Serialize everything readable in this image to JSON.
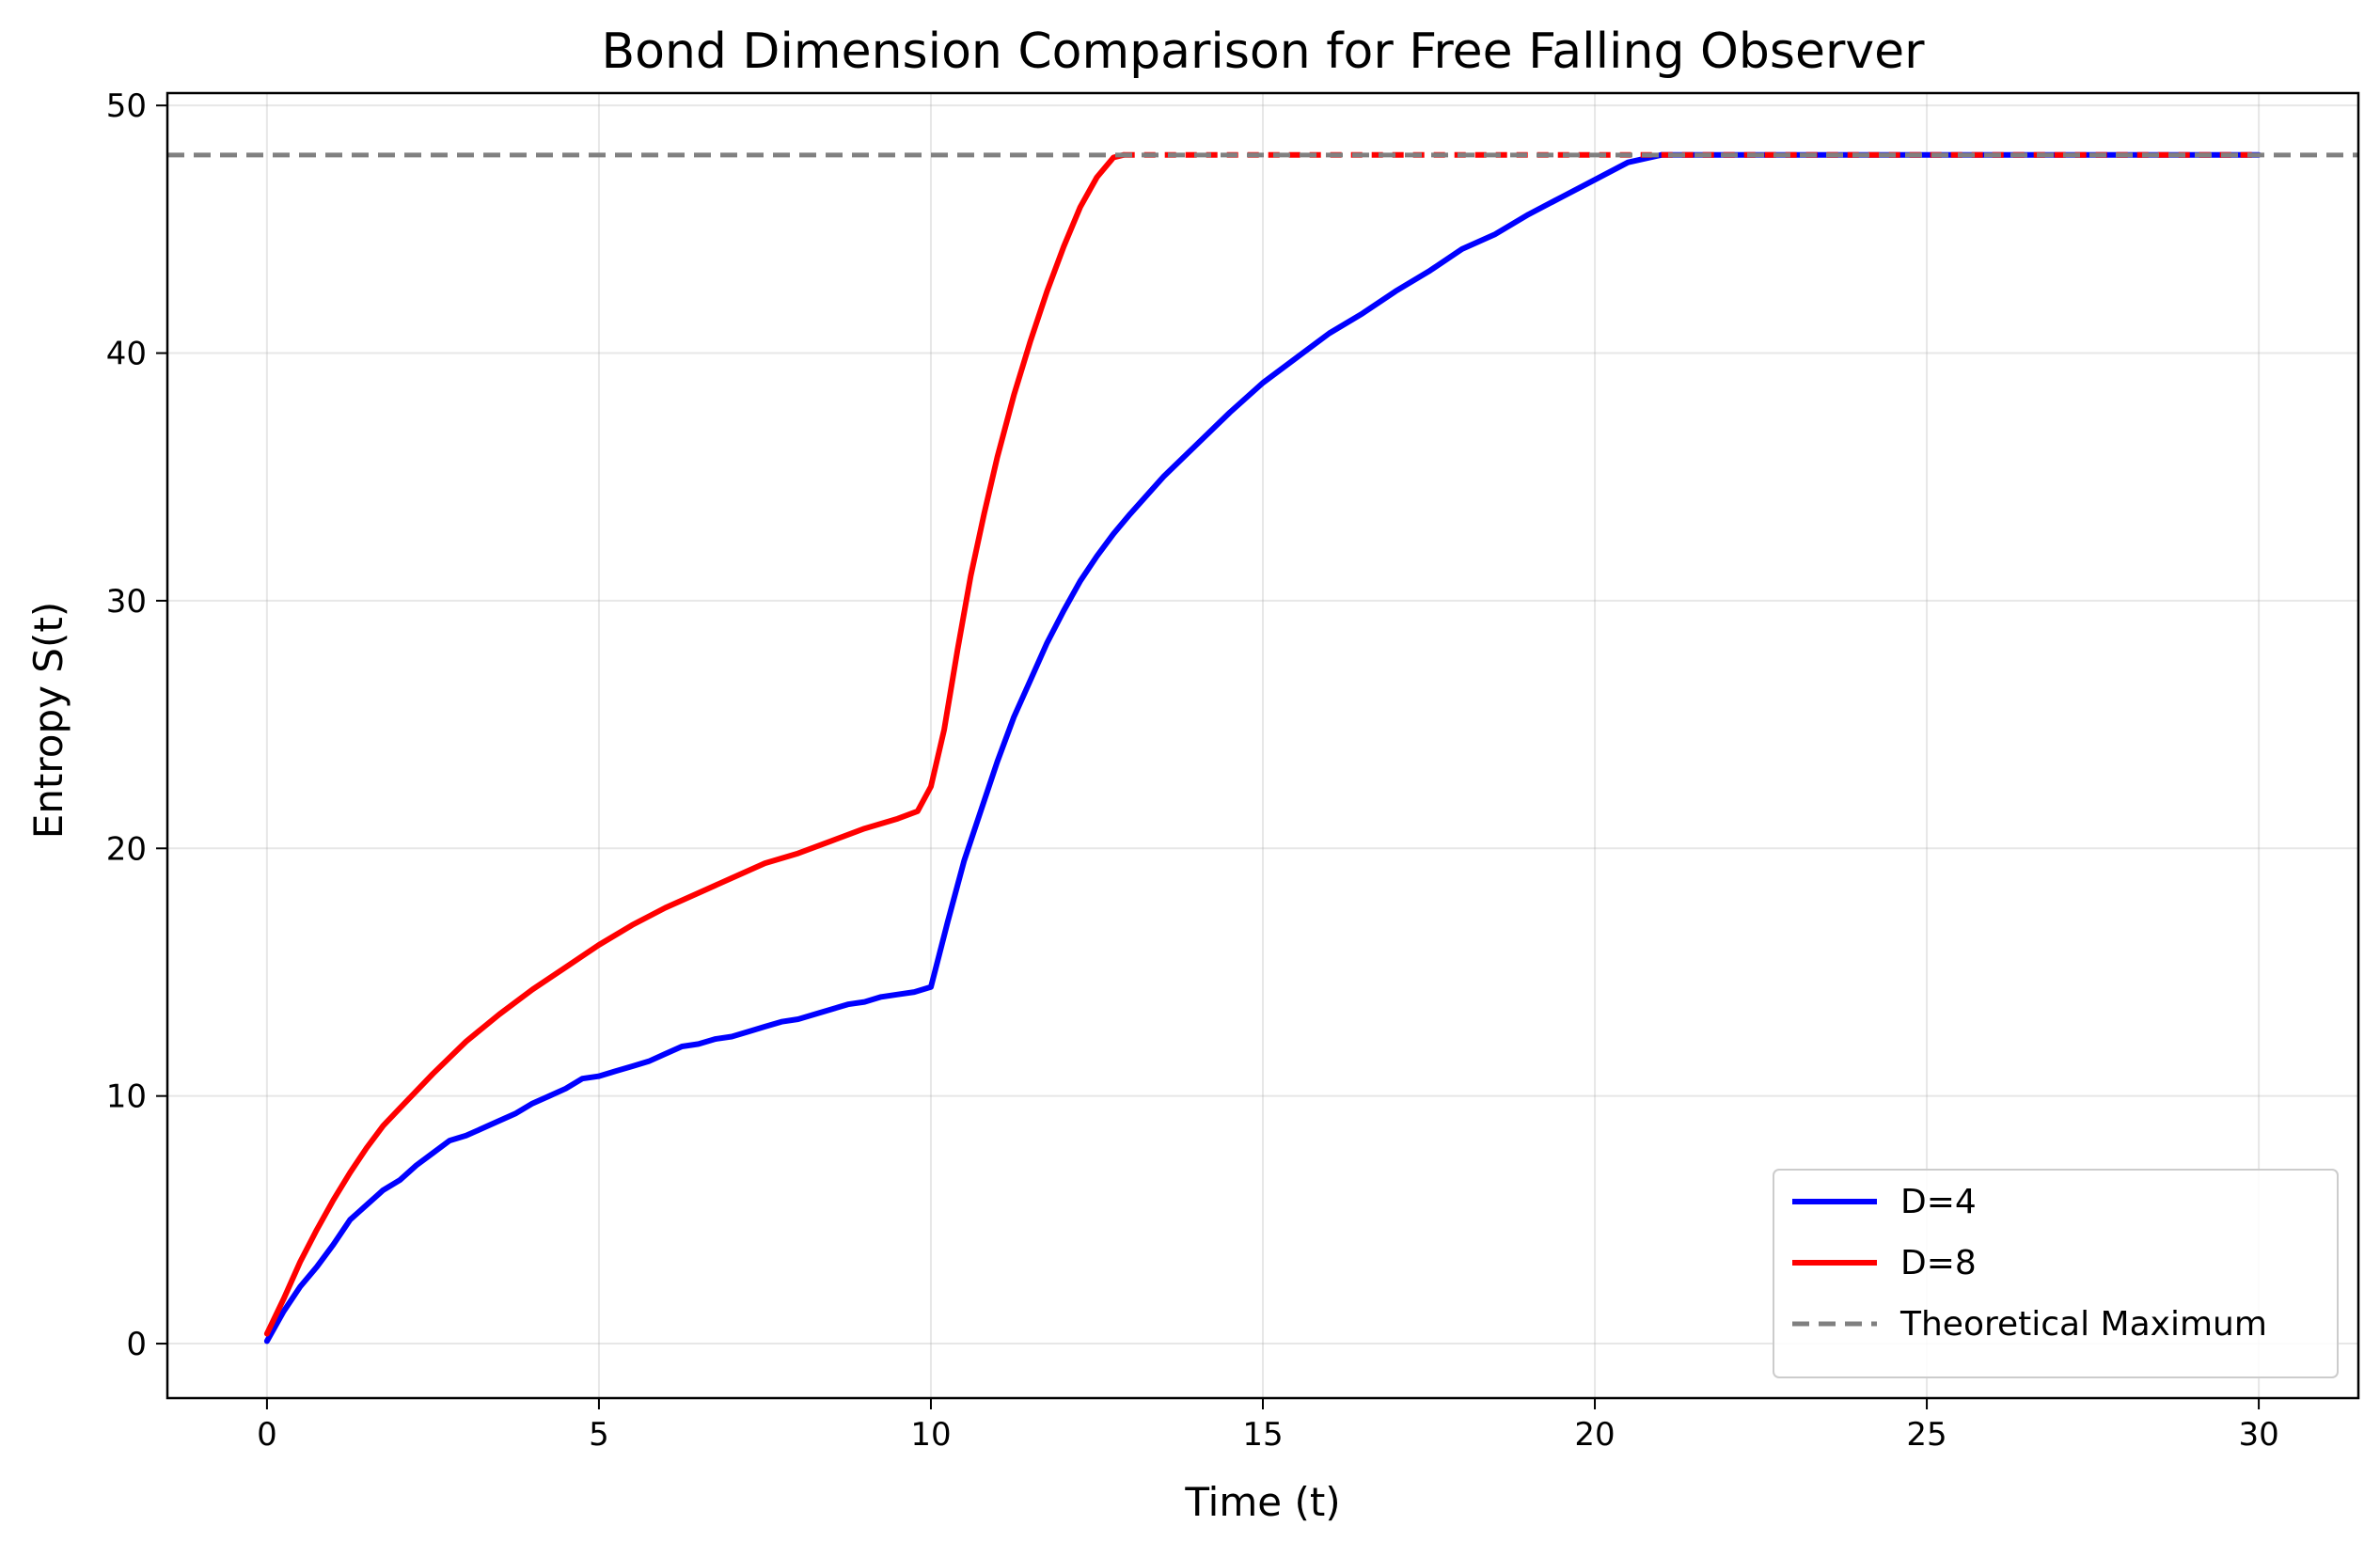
{
  "chart_data": {
    "type": "line",
    "title": "Bond Dimension Comparison for Free Falling Observer",
    "xlabel": "Time (t)",
    "ylabel": "Entropy S(t)",
    "xlim": [
      -1.5,
      31.5
    ],
    "ylim": [
      -2.2,
      50.5
    ],
    "xticks": [
      0,
      5,
      10,
      15,
      20,
      25,
      30
    ],
    "yticks": [
      0,
      10,
      20,
      30,
      40,
      50
    ],
    "grid": true,
    "legend_position": "lower right",
    "series": [
      {
        "name": "D=4",
        "color": "#0000ff",
        "x": [
          0,
          0.25,
          0.5,
          0.75,
          1.0,
          1.25,
          1.5,
          1.75,
          2.0,
          2.25,
          2.5,
          2.75,
          3.0,
          3.25,
          3.5,
          3.75,
          4.0,
          4.25,
          4.5,
          4.75,
          5.0,
          5.25,
          5.5,
          5.75,
          6.0,
          6.25,
          6.5,
          6.75,
          7.0,
          7.25,
          7.5,
          7.75,
          8.0,
          8.25,
          8.5,
          8.75,
          9.0,
          9.25,
          9.5,
          9.75,
          10.0,
          10.25,
          10.5,
          10.75,
          11.0,
          11.25,
          11.5,
          11.75,
          12.0,
          12.25,
          12.5,
          12.75,
          13.0,
          13.5,
          14.0,
          14.5,
          15.0,
          15.5,
          16.0,
          16.5,
          17.0,
          17.5,
          18.0,
          18.5,
          19.0,
          19.5,
          20.0,
          20.5,
          21.0
        ],
        "y": [
          0.1,
          1.3,
          2.3,
          3.1,
          4.0,
          5.0,
          5.6,
          6.2,
          6.6,
          7.2,
          7.7,
          8.2,
          8.4,
          8.7,
          9.0,
          9.3,
          9.7,
          10.0,
          10.3,
          10.7,
          10.8,
          11.0,
          11.2,
          11.4,
          11.7,
          12.0,
          12.1,
          12.3,
          12.4,
          12.6,
          12.8,
          13.0,
          13.1,
          13.3,
          13.5,
          13.7,
          13.8,
          14.0,
          14.1,
          14.2,
          14.4,
          17.0,
          19.5,
          21.5,
          23.5,
          25.3,
          26.8,
          28.3,
          29.6,
          30.8,
          31.8,
          32.7,
          33.5,
          35.0,
          36.3,
          37.6,
          38.8,
          39.8,
          40.8,
          41.6,
          42.5,
          43.3,
          44.2,
          44.8,
          45.6,
          46.3,
          47.0,
          47.7,
          48.0
        ]
      },
      {
        "name": "D=8",
        "color": "#ff0000",
        "x": [
          0,
          0.25,
          0.5,
          0.75,
          1.0,
          1.25,
          1.5,
          1.75,
          2.0,
          2.5,
          3.0,
          3.5,
          4.0,
          4.5,
          5.0,
          5.5,
          6.0,
          6.5,
          7.0,
          7.5,
          8.0,
          8.5,
          9.0,
          9.5,
          9.8,
          10.0,
          10.2,
          10.4,
          10.6,
          10.8,
          11.0,
          11.25,
          11.5,
          11.75,
          12.0,
          12.25,
          12.5,
          12.75,
          12.9
        ],
        "y": [
          0.4,
          1.8,
          3.3,
          4.6,
          5.8,
          6.9,
          7.9,
          8.8,
          9.5,
          10.9,
          12.2,
          13.3,
          14.3,
          15.2,
          16.1,
          16.9,
          17.6,
          18.2,
          18.8,
          19.4,
          19.8,
          20.3,
          20.8,
          21.2,
          21.5,
          22.5,
          24.8,
          28.0,
          31.0,
          33.5,
          35.8,
          38.3,
          40.5,
          42.5,
          44.3,
          45.9,
          47.1,
          47.9,
          48.0
        ]
      },
      {
        "name": "D=4",
        "color": "#0000ff",
        "x": [
          21.0,
          30.0
        ],
        "y": [
          48.0,
          48.0
        ],
        "in_legend": false
      },
      {
        "name": "D=8",
        "color": "#ff0000",
        "x": [
          12.9,
          30.0
        ],
        "y": [
          48.0,
          48.0
        ],
        "dashed": true,
        "in_legend": false
      }
    ],
    "reference_line": {
      "name": "Theoretical Maximum",
      "y": 48,
      "color": "#808080",
      "style": "dashed"
    }
  }
}
